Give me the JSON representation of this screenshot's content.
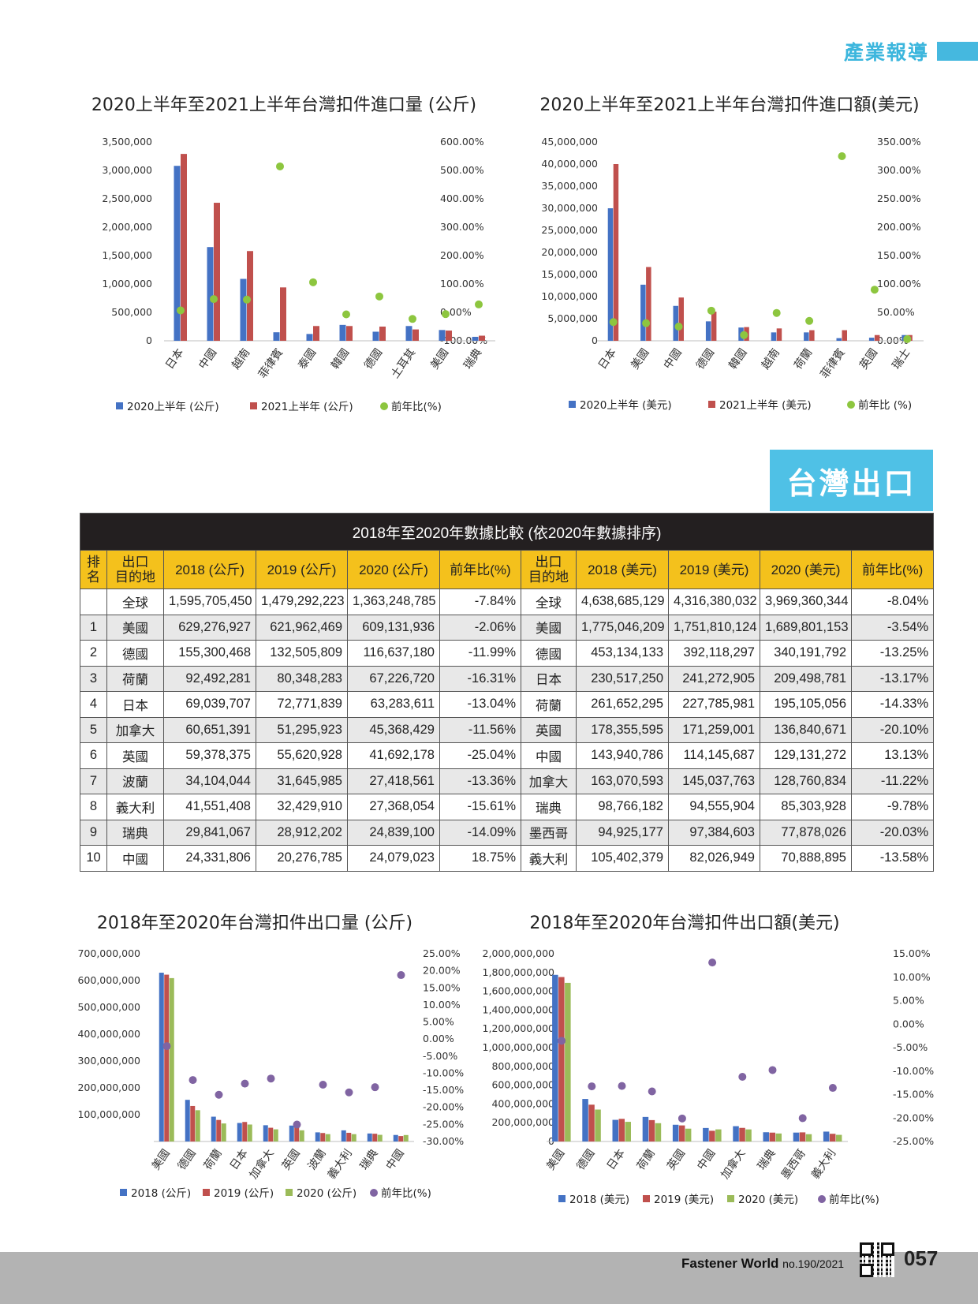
{
  "section_header": "產業報導",
  "export_banner": "台灣出口",
  "colors": {
    "blue": "#4472c4",
    "red": "#c0504d",
    "green": "#9bbb59",
    "dot_green": "#8dc63f",
    "dot_purple": "#8064a2",
    "accent": "#4fc1e6",
    "table_title_bg": "#231f20",
    "table_head_bg": "#f4c11c"
  },
  "table": {
    "title": "2018年至2020年數據比較 (依2020年數據排序)",
    "headers": [
      "排名",
      "出口目的地",
      "2018 (公斤)",
      "2019 (公斤)",
      "2020 (公斤)",
      "前年比(%)",
      "出口目的地",
      "2018 (美元)",
      "2019 (美元)",
      "2020 (美元)",
      "前年比(%)"
    ],
    "rows": [
      [
        "",
        "全球",
        "1,595,705,450",
        "1,479,292,223",
        "1,363,248,785",
        "-7.84%",
        "全球",
        "4,638,685,129",
        "4,316,380,032",
        "3,969,360,344",
        "-8.04%"
      ],
      [
        "1",
        "美國",
        "629,276,927",
        "621,962,469",
        "609,131,936",
        "-2.06%",
        "美國",
        "1,775,046,209",
        "1,751,810,124",
        "1,689,801,153",
        "-3.54%"
      ],
      [
        "2",
        "德國",
        "155,300,468",
        "132,505,809",
        "116,637,180",
        "-11.99%",
        "德國",
        "453,134,133",
        "392,118,297",
        "340,191,792",
        "-13.25%"
      ],
      [
        "3",
        "荷蘭",
        "92,492,281",
        "80,348,283",
        "67,226,720",
        "-16.31%",
        "日本",
        "230,517,250",
        "241,272,905",
        "209,498,781",
        "-13.17%"
      ],
      [
        "4",
        "日本",
        "69,039,707",
        "72,771,839",
        "63,283,611",
        "-13.04%",
        "荷蘭",
        "261,652,295",
        "227,785,981",
        "195,105,056",
        "-14.33%"
      ],
      [
        "5",
        "加拿大",
        "60,651,391",
        "51,295,923",
        "45,368,429",
        "-11.56%",
        "英國",
        "178,355,595",
        "171,259,001",
        "136,840,671",
        "-20.10%"
      ],
      [
        "6",
        "英國",
        "59,378,375",
        "55,620,928",
        "41,692,178",
        "-25.04%",
        "中國",
        "143,940,786",
        "114,145,687",
        "129,131,272",
        "13.13%"
      ],
      [
        "7",
        "波蘭",
        "34,104,044",
        "31,645,985",
        "27,418,561",
        "-13.36%",
        "加拿大",
        "163,070,593",
        "145,037,763",
        "128,760,834",
        "-11.22%"
      ],
      [
        "8",
        "義大利",
        "41,551,408",
        "32,429,910",
        "27,368,054",
        "-15.61%",
        "瑞典",
        "98,766,182",
        "94,555,904",
        "85,303,928",
        "-9.78%"
      ],
      [
        "9",
        "瑞典",
        "29,841,067",
        "28,912,202",
        "24,839,100",
        "-14.09%",
        "墨西哥",
        "94,925,177",
        "97,384,603",
        "77,878,026",
        "-20.03%"
      ],
      [
        "10",
        "中國",
        "24,331,806",
        "20,276,785",
        "24,079,023",
        "18.75%",
        "義大利",
        "105,402,379",
        "82,026,949",
        "70,888,895",
        "-13.58%"
      ]
    ]
  },
  "footer": {
    "brand": "Fastener World",
    "issue": "no.190/2021",
    "page": "057"
  },
  "chart_data": [
    {
      "type": "bar",
      "title": "2020上半年至2021上半年台灣扣件進口量 (公斤)",
      "categories": [
        "日本",
        "中國",
        "越南",
        "菲律賓",
        "泰國",
        "韓國",
        "德國",
        "土耳其",
        "美國",
        "瑞典"
      ],
      "ylim": [
        0,
        3500000
      ],
      "y_ticks": [
        "3,500,000",
        "3,000,000",
        "2,500,000",
        "2,000,000",
        "1,500,000",
        "1,000,000",
        "500,000",
        "0"
      ],
      "y2lim": [
        -100,
        600
      ],
      "y2_ticks": [
        "600.00%",
        "500.00%",
        "400.00%",
        "300.00%",
        "200.00%",
        "100.00%",
        "0.00%",
        "-100.00%"
      ],
      "series": [
        {
          "name": "2020上半年 (公斤)",
          "color": "#4472c4",
          "values": [
            3080000,
            1650000,
            1090000,
            150000,
            120000,
            280000,
            160000,
            260000,
            190000,
            70000
          ]
        },
        {
          "name": "2021上半年 (公斤)",
          "color": "#c0504d",
          "values": [
            3290000,
            2430000,
            1580000,
            940000,
            260000,
            260000,
            250000,
            200000,
            180000,
            90000
          ]
        },
        {
          "name": "前年比(%)",
          "kind": "dot",
          "color": "#8dc63f",
          "values": [
            7,
            47,
            45,
            514,
            106,
            -7,
            56,
            -23,
            -6,
            28
          ]
        }
      ]
    },
    {
      "type": "bar",
      "title": "2020上半年至2021上半年台灣扣件進口額(美元)",
      "categories": [
        "日本",
        "美國",
        "中國",
        "德國",
        "韓國",
        "越南",
        "荷蘭",
        "菲律賓",
        "英國",
        "瑞士"
      ],
      "ylim": [
        0,
        45000000
      ],
      "y_ticks": [
        "45,000,000",
        "40,000,000",
        "35,000,000",
        "30,000,000",
        "25,000,000",
        "20,000,000",
        "15,000,000",
        "10,000,000",
        "5,000,000",
        "0"
      ],
      "y2lim": [
        0,
        350
      ],
      "y2_ticks": [
        "350.00%",
        "300.00%",
        "250.00%",
        "200.00%",
        "150.00%",
        "100.00%",
        "50.00%",
        "0.00%"
      ],
      "series": [
        {
          "name": "2020上半年 (美元)",
          "color": "#4472c4",
          "values": [
            30000000,
            12700000,
            7900000,
            4400000,
            3000000,
            1900000,
            1900000,
            600000,
            700000,
            1300000
          ]
        },
        {
          "name": "2021上半年 (美元)",
          "color": "#c0504d",
          "values": [
            40000000,
            16700000,
            9800000,
            6600000,
            3100000,
            2800000,
            2400000,
            2400000,
            1300000,
            1300000
          ]
        },
        {
          "name": "前年比 (%)",
          "kind": "dot",
          "color": "#8dc63f",
          "values": [
            33,
            31,
            25,
            53,
            10,
            49,
            35,
            325,
            90,
            3
          ]
        }
      ]
    },
    {
      "type": "bar",
      "title": "2018年至2020年台灣扣件出口量 (公斤)",
      "categories": [
        "美國",
        "德國",
        "荷蘭",
        "日本",
        "加拿大",
        "英國",
        "波蘭",
        "義大利",
        "瑞典",
        "中國"
      ],
      "ylim": [
        0,
        700000000
      ],
      "y_ticks": [
        "700,000,000",
        "600,000,000",
        "500,000,000",
        "400,000,000",
        "300,000,000",
        "200,000,000",
        "100,000,000",
        ""
      ],
      "y2lim": [
        -30,
        25
      ],
      "y2_ticks": [
        "25.00%",
        "20.00%",
        "15.00%",
        "10.00%",
        "5.00%",
        "0.00%",
        "-5.00%",
        "-10.00%",
        "-15.00%",
        "-20.00%",
        "-25.00%",
        "-30.00%"
      ],
      "series": [
        {
          "name": "2018 (公斤)",
          "color": "#4472c4",
          "values": [
            629276927,
            155300468,
            92492281,
            69039707,
            60651391,
            59378375,
            34104044,
            41551408,
            29841067,
            24331806
          ]
        },
        {
          "name": "2019 (公斤)",
          "color": "#c0504d",
          "values": [
            621962469,
            132505809,
            80348283,
            72771839,
            51295923,
            55620928,
            31645985,
            32429910,
            28912202,
            20276785
          ]
        },
        {
          "name": "2020 (公斤)",
          "color": "#9bbb59",
          "values": [
            609131936,
            116637180,
            67226720,
            63283611,
            45368429,
            41692178,
            27418561,
            27368054,
            24839100,
            24079023
          ]
        },
        {
          "name": "前年比(%)",
          "kind": "dot",
          "color": "#8064a2",
          "values": [
            -2.06,
            -11.99,
            -16.31,
            -13.04,
            -11.56,
            -25.04,
            -13.36,
            -15.61,
            -14.09,
            18.75
          ]
        }
      ]
    },
    {
      "type": "bar",
      "title": "2018年至2020年台灣扣件出口額(美元)",
      "categories": [
        "美國",
        "德國",
        "日本",
        "荷蘭",
        "英國",
        "中國",
        "加拿大",
        "瑞典",
        "墨西哥",
        "義大利"
      ],
      "ylim": [
        0,
        2000000000
      ],
      "y_ticks": [
        "2,000,000,000",
        "1,800,000,000",
        "1,600,000,000",
        "1,400,000,000",
        "1,200,000,000",
        "1,000,000,000",
        "800,000,000",
        "600,000,000",
        "400,000,000",
        "200,000,000",
        "0"
      ],
      "y2lim": [
        -25,
        15
      ],
      "y2_ticks": [
        "15.00%",
        "10.00%",
        "5.00%",
        "0.00%",
        "-5.00%",
        "-10.00%",
        "-15.00%",
        "-20.00%",
        "-25.00%"
      ],
      "series": [
        {
          "name": "2018 (美元)",
          "color": "#4472c4",
          "values": [
            1775046209,
            453134133,
            230517250,
            261652295,
            178355595,
            143940786,
            163070593,
            98766182,
            94925177,
            105402379
          ]
        },
        {
          "name": "2019 (美元)",
          "color": "#c0504d",
          "values": [
            1751810124,
            392118297,
            241272905,
            227785981,
            171259001,
            114145687,
            145037763,
            94555904,
            97384603,
            82026949
          ]
        },
        {
          "name": "2020 (美元)",
          "color": "#9bbb59",
          "values": [
            1689801153,
            340191792,
            209498781,
            195105056,
            136840671,
            129131272,
            128760834,
            85303928,
            77878026,
            70888895
          ]
        },
        {
          "name": "前年比(%)",
          "kind": "dot",
          "color": "#8064a2",
          "values": [
            -3.54,
            -13.25,
            -13.17,
            -14.33,
            -20.1,
            13.13,
            -11.22,
            -9.78,
            -20.03,
            -13.58
          ]
        }
      ]
    }
  ]
}
